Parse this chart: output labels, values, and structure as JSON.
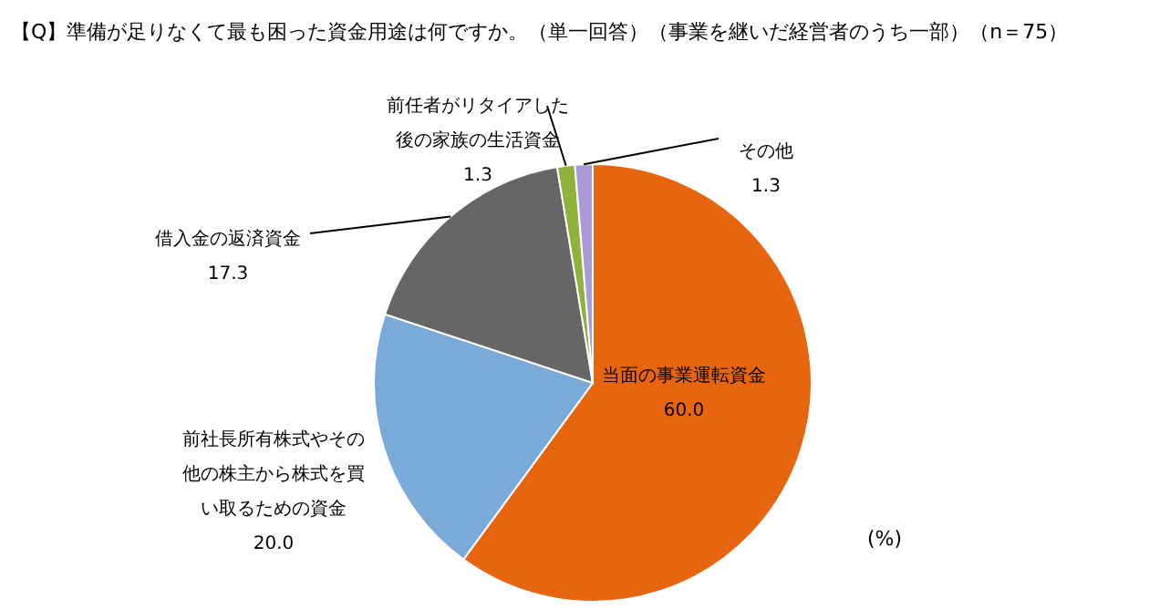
{
  "chart_data": {
    "type": "pie",
    "title": "【Q】準備が足りなくて最も困った資金用途は何ですか。（単一回答）（事業を継いだ経営者のうち一部）（n＝75）",
    "categories": [
      "当面の事業運転資金",
      "前社長所有株式やその他の株主から株式を買い取るための資金",
      "借入金の返済資金",
      "前任者がリタイアした後の家族の生活資金",
      "その他"
    ],
    "values": [
      60.0,
      20.0,
      17.3,
      1.3,
      1.3
    ],
    "value_labels": [
      "60.0",
      "20.0",
      "17.3",
      "1.3",
      "1.3"
    ],
    "colors": [
      "#e8650f",
      "#7aaad8",
      "#666666",
      "#8db33a",
      "#a99bd8"
    ],
    "annotations": [
      "(%)"
    ]
  }
}
